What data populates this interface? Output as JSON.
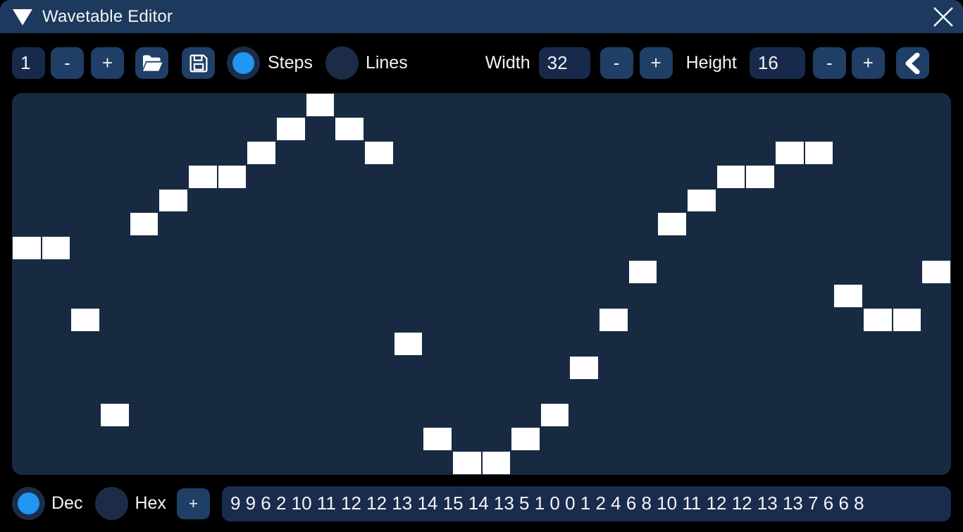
{
  "window": {
    "title": "Wavetable Editor"
  },
  "toolbar": {
    "slot_index": "1",
    "slot_minus": "-",
    "slot_plus": "+",
    "mode_options": [
      {
        "label": "Steps",
        "selected": true
      },
      {
        "label": "Lines",
        "selected": false
      }
    ],
    "width": {
      "label": "Width",
      "value": "32",
      "minus": "-",
      "plus": "+"
    },
    "height": {
      "label": "Height",
      "value": "16",
      "minus": "-",
      "plus": "+"
    }
  },
  "grid": {
    "columns": 32,
    "rows": 16,
    "values": [
      9,
      9,
      6,
      2,
      10,
      11,
      12,
      12,
      13,
      14,
      15,
      14,
      13,
      5,
      1,
      0,
      0,
      1,
      2,
      4,
      6,
      8,
      10,
      11,
      12,
      12,
      13,
      13,
      7,
      6,
      6,
      8
    ]
  },
  "value_bar": {
    "base_options": [
      {
        "label": "Dec",
        "selected": true
      },
      {
        "label": "Hex",
        "selected": false
      }
    ],
    "add_label": "+",
    "values_text": "9 9 6 2 10 11 12 12 13 14 15 14 13 5 1 0 0 1 2 4 6 8 10 11 12 12 13 13 7 6 6 8"
  },
  "colors": {
    "titlebar": "#1d3a5e",
    "button": "#1f3f66",
    "input": "#182a4c",
    "grid_background": "#172a42",
    "cell": "#ffffff",
    "radio_selected": "#2196f3",
    "page_background": "#000000"
  }
}
